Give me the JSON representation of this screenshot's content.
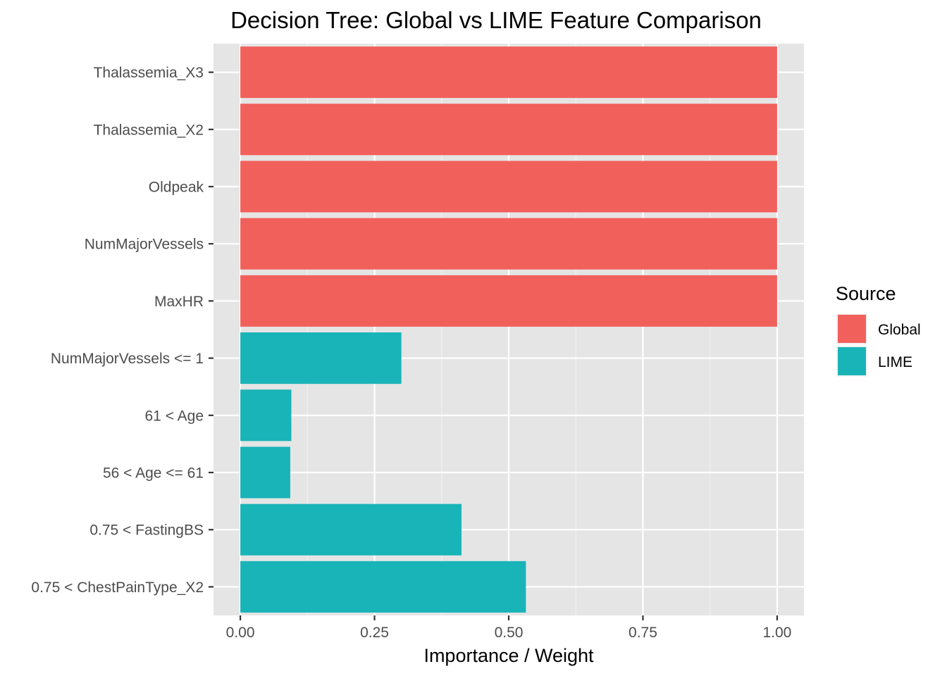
{
  "chart_data": {
    "type": "bar",
    "orientation": "horizontal",
    "title": "Decision Tree: Global vs LIME Feature Comparison",
    "xlabel": "Importance / Weight",
    "ylabel": "",
    "xlim": [
      -0.05,
      1.05
    ],
    "x_ticks": [
      0.0,
      0.25,
      0.5,
      0.75,
      1.0
    ],
    "x_tick_labels": [
      "0.00",
      "0.25",
      "0.50",
      "0.75",
      "1.00"
    ],
    "grid": true,
    "legend_position": "right",
    "legend_title": "Source",
    "legend": [
      {
        "name": "Global",
        "color": "#F8766D"
      },
      {
        "name": "LIME",
        "color": "#00BFC4"
      }
    ],
    "categories": [
      "Thalassemia_X3",
      "Thalassemia_X2",
      "Oldpeak",
      "NumMajorVessels",
      "MaxHR",
      "NumMajorVessels <= 1",
      "61 < Age",
      "56 < Age <= 61",
      "0.75 < FastingBS",
      "0.75 < ChestPainType_X2"
    ],
    "values": [
      1.0,
      1.0,
      1.0,
      1.0,
      1.0,
      0.3,
      0.095,
      0.093,
      0.412,
      0.532
    ],
    "sources": [
      "Global",
      "Global",
      "Global",
      "Global",
      "Global",
      "LIME",
      "LIME",
      "LIME",
      "LIME",
      "LIME"
    ],
    "colors": {
      "Global": "#F2605C",
      "LIME": "#19B4B8",
      "panel": "#E5E5E5",
      "grid_major": "#FFFFFF",
      "grid_minor": "#F2F2F2"
    }
  }
}
